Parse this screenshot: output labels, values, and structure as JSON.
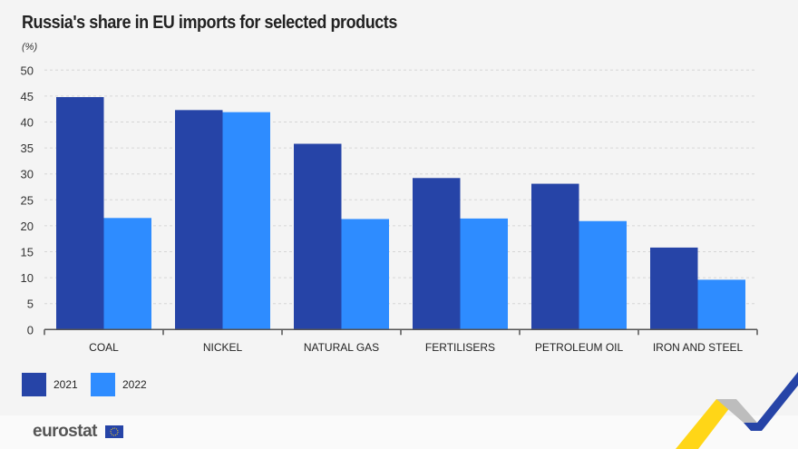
{
  "chart_data": {
    "type": "bar",
    "title": "Russia's share in EU imports for selected products",
    "ylabel": "(%)",
    "xlabel": "",
    "ylim": [
      0,
      50
    ],
    "yticks": [
      0,
      5,
      10,
      15,
      20,
      25,
      30,
      35,
      40,
      45,
      50
    ],
    "grid": true,
    "legend_position": "bottom-left",
    "categories": [
      "COAL",
      "NICKEL",
      "NATURAL GAS",
      "FERTILISERS",
      "PETROLEUM OIL",
      "IRON AND STEEL"
    ],
    "series": [
      {
        "name": "2021",
        "color": "#2644a7",
        "values": [
          44.8,
          42.3,
          35.8,
          29.2,
          28.1,
          15.8
        ]
      },
      {
        "name": "2022",
        "color": "#2e8cff",
        "values": [
          21.5,
          41.9,
          21.3,
          21.4,
          20.9,
          9.6
        ]
      }
    ]
  },
  "footer": {
    "brand": "eurostat"
  }
}
